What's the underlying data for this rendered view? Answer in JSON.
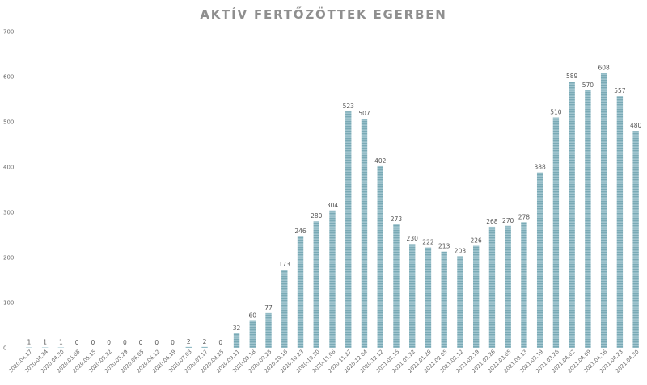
{
  "chart_data": {
    "type": "bar",
    "title": "AKTÍV FERTŐZÖTTEK EGERBEN",
    "xlabel": "",
    "ylabel": "",
    "ylim": [
      0,
      700
    ],
    "yticks": [
      0,
      100,
      200,
      300,
      400,
      500,
      600,
      700
    ],
    "grid": false,
    "legend": "none",
    "bar_color": "#7aaab6",
    "bar_stripe_color": "#b9d6dd",
    "categories": [
      "2020.04.17",
      "2020.04.24",
      "2020.04.30",
      "2020.05.08",
      "2020.05.15",
      "2020.05.22",
      "2020.05.29",
      "2020.06.05",
      "2020.06.12",
      "2020.06.19",
      "2020.07.03",
      "2020.07.17",
      "2020.08.25",
      "2020.09.11",
      "2020.09.18",
      "2020.09.25",
      "2020.10.16",
      "2020.10.23",
      "2020.10.30",
      "2020.11.06",
      "2020.11.27",
      "2020.12.04",
      "2020.12.12",
      "2021.01.15",
      "2021.01.22",
      "2021.01.29",
      "2021.02.05",
      "2021.02.12",
      "2021.02.19",
      "2021.02.26",
      "2021.03.05",
      "2021.03.13",
      "2021.03.19",
      "2021.03.26",
      "2021.04.02",
      "2021.04.09",
      "2021.04.16",
      "2021.04.23",
      "2021.04.30"
    ],
    "values": [
      1,
      1,
      1,
      0,
      0,
      0,
      0,
      0,
      0,
      0,
      2,
      2,
      0,
      32,
      60,
      77,
      173,
      246,
      280,
      304,
      523,
      507,
      402,
      273,
      230,
      222,
      213,
      203,
      226,
      268,
      270,
      278,
      388,
      510,
      589,
      570,
      608,
      557,
      480
    ]
  }
}
